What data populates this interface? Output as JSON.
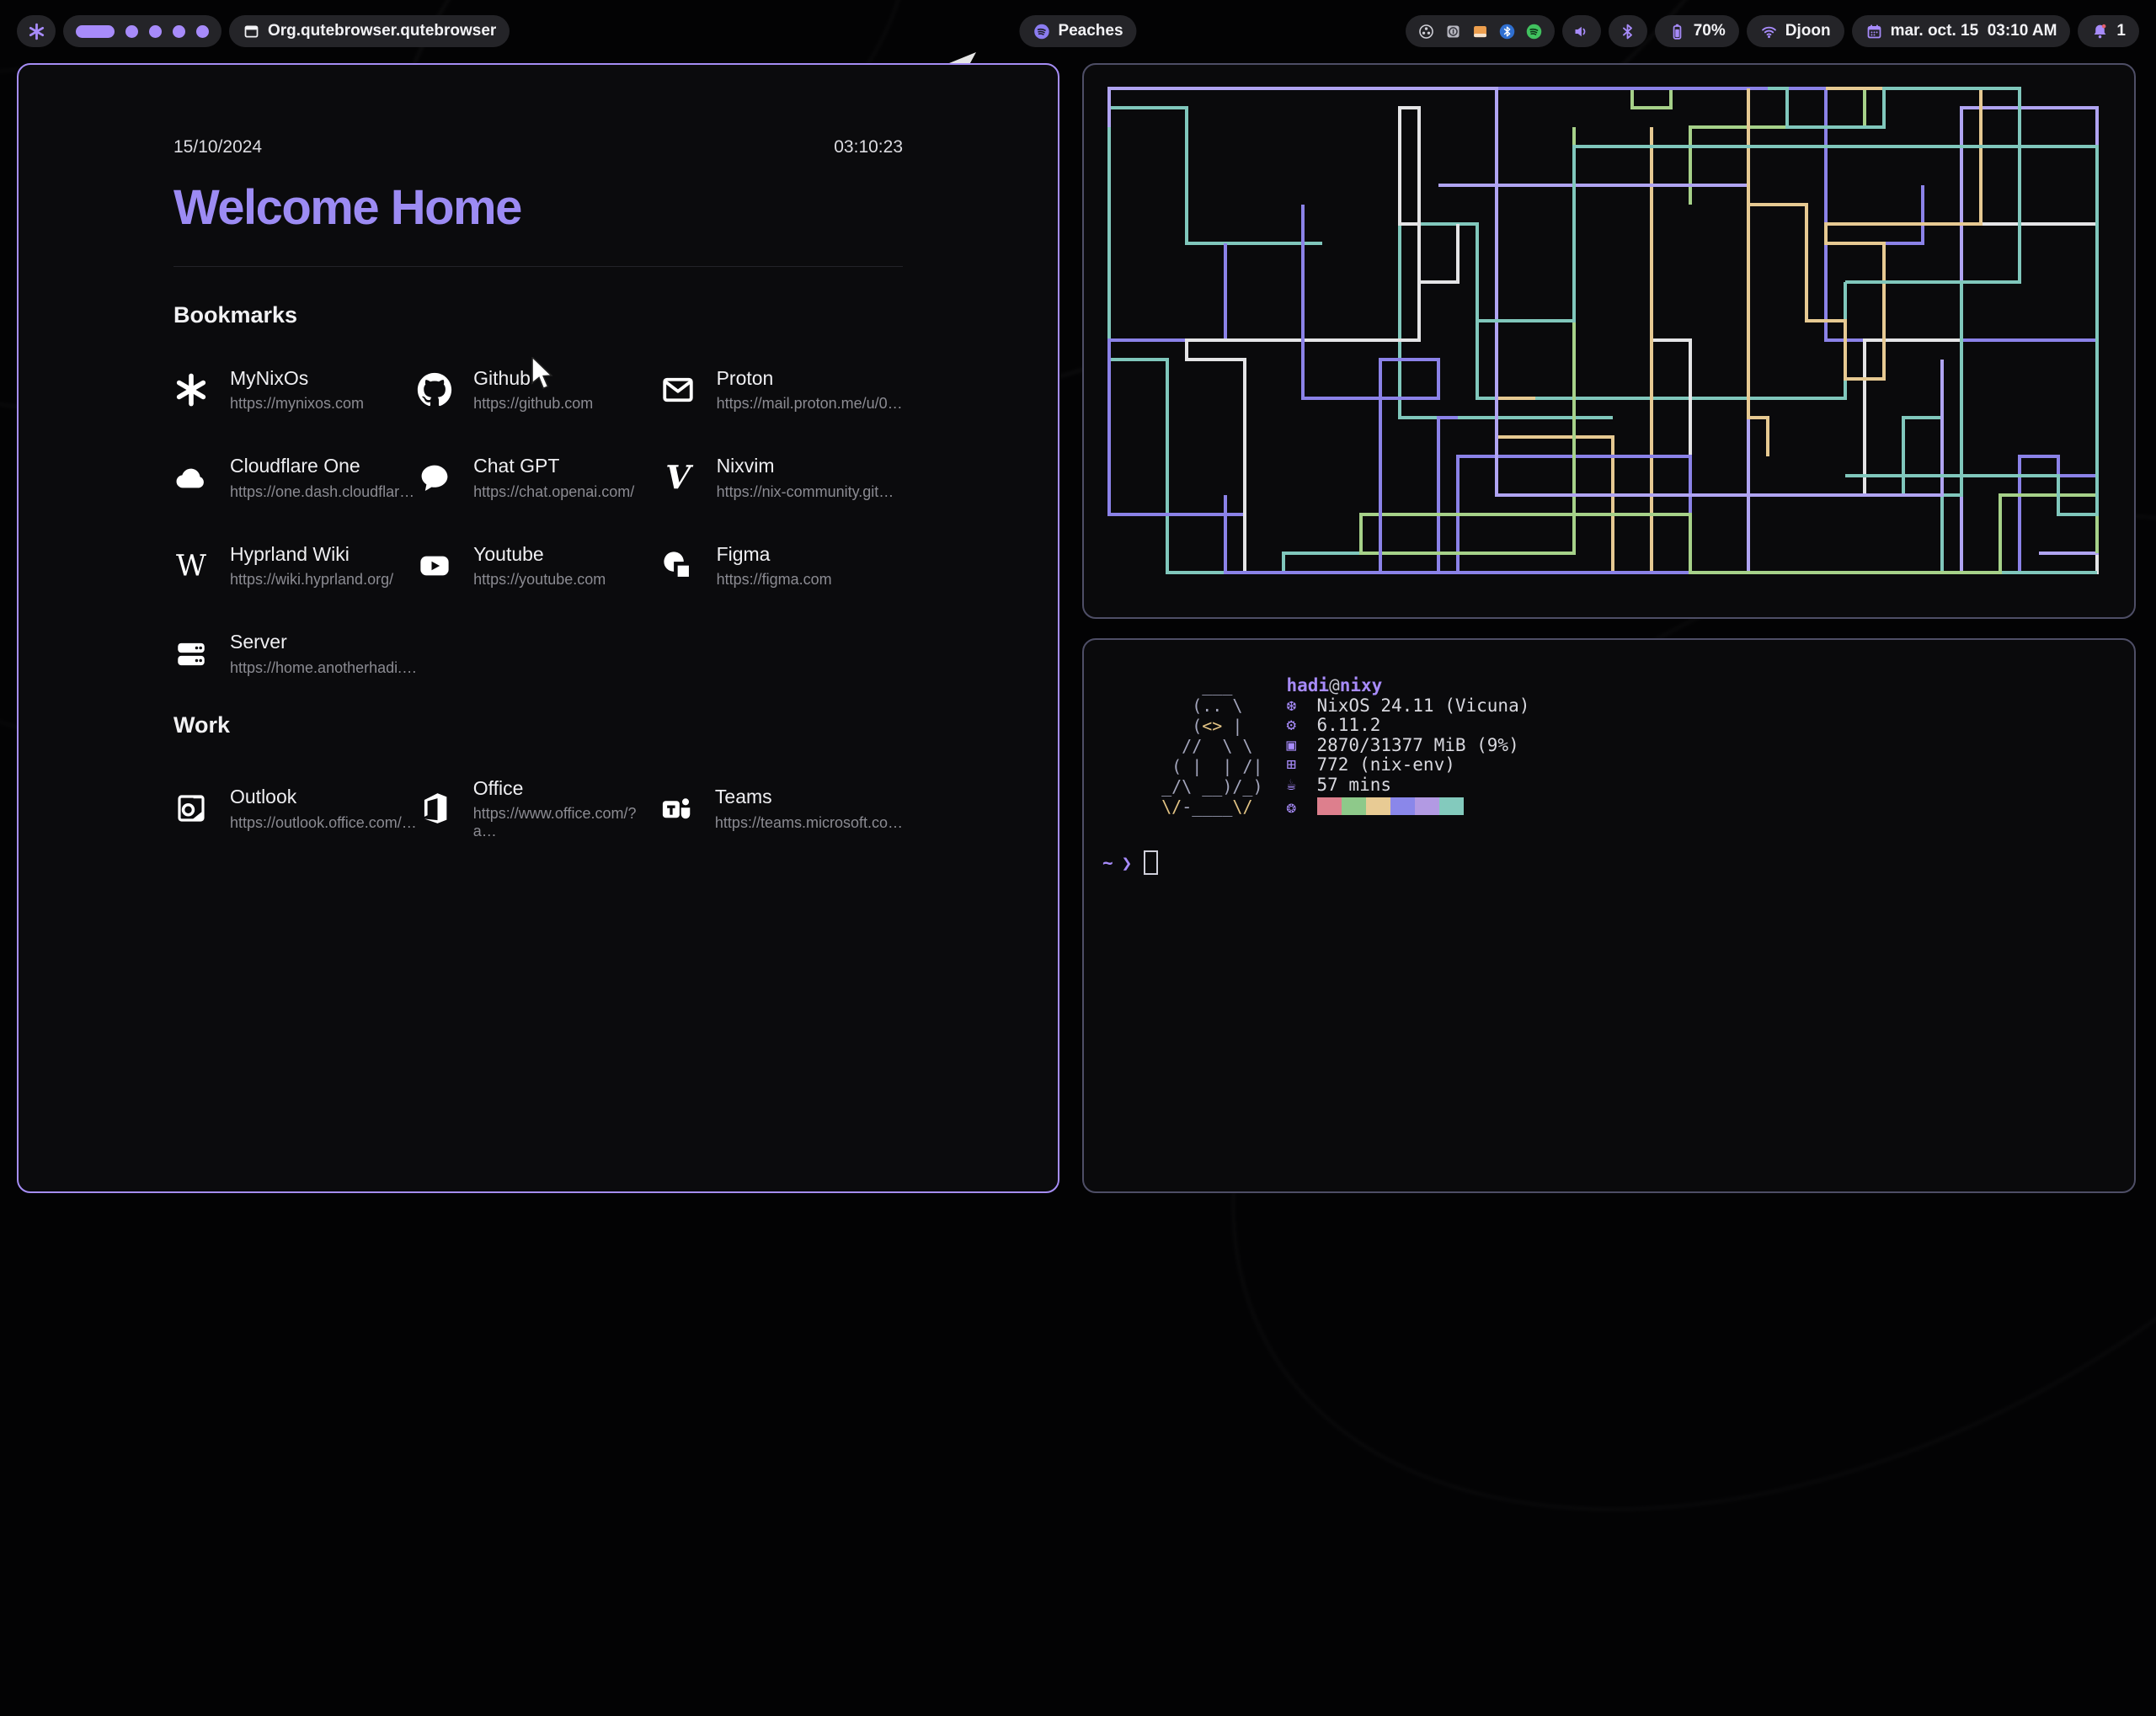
{
  "topbar": {
    "window_title": "Org.qutebrowser.qutebrowser",
    "workspaces": {
      "count": 5,
      "active_index": 0
    },
    "media": {
      "label": "Peaches"
    },
    "tray_icons": [
      "obs",
      "keepassxc",
      "files",
      "bluetooth",
      "spotify"
    ],
    "battery": "70%",
    "network": "Djoon",
    "clock": "mar. oct. 15  03:10 AM",
    "notifications": "1"
  },
  "startpage": {
    "date": "15/10/2024",
    "time": "03:10:23",
    "title": "Welcome Home",
    "sections": [
      {
        "title": "Bookmarks",
        "items": [
          {
            "name": "MyNixOs",
            "url": "https://mynixos.com",
            "icon": "nix"
          },
          {
            "name": "Github",
            "url": "https://github.com",
            "icon": "github"
          },
          {
            "name": "Proton",
            "url": "https://mail.proton.me/u/0…",
            "icon": "mail"
          },
          {
            "name": "Cloudflare One",
            "url": "https://one.dash.cloudflar…",
            "icon": "cloud"
          },
          {
            "name": "Chat GPT",
            "url": "https://chat.openai.com/",
            "icon": "chat"
          },
          {
            "name": "Nixvim",
            "url": "https://nix-community.git…",
            "icon": "nixvim"
          },
          {
            "name": "Hyprland Wiki",
            "url": "https://wiki.hyprland.org/",
            "icon": "wikipedia"
          },
          {
            "name": "Youtube",
            "url": "https://youtube.com",
            "icon": "youtube"
          },
          {
            "name": "Figma",
            "url": "https://figma.com",
            "icon": "figma"
          },
          {
            "name": "Server",
            "url": "https://home.anotherhadi.…",
            "icon": "server"
          }
        ]
      },
      {
        "title": "Work",
        "items": [
          {
            "name": "Outlook",
            "url": "https://outlook.office.com/…",
            "icon": "outlook"
          },
          {
            "name": "Office",
            "url": "https://www.office.com/?a…",
            "icon": "office"
          },
          {
            "name": "Teams",
            "url": "https://teams.microsoft.co…",
            "icon": "teams"
          }
        ]
      }
    ]
  },
  "terminal": {
    "user": "hadi",
    "at": "@",
    "host": "nixy",
    "ascii_art": [
      "      ___",
      "     (.. \\",
      "     (<> |",
      "    //  \\ \\",
      "   ( |  | /|",
      "  _/\\ __)/_)",
      "  \\/-____\\/"
    ],
    "info": [
      {
        "icon": "os-icon",
        "glyph": "❆",
        "text": "NixOS 24.11 (Vicuna)"
      },
      {
        "icon": "kernel-icon",
        "glyph": "⚙",
        "text": "6.11.2"
      },
      {
        "icon": "memory-icon",
        "glyph": "▣",
        "text": "2870/31377 MiB (9%)"
      },
      {
        "icon": "packages-icon",
        "glyph": "⊞",
        "text": "772 (nix-env)"
      },
      {
        "icon": "uptime-icon",
        "glyph": "☕",
        "text": "57 mins"
      }
    ],
    "palette_icon_glyph": "❂",
    "palette": [
      "#dd7f8d",
      "#8ec98a",
      "#e8cb94",
      "#8a87ea",
      "#b29ae3",
      "#83cabd"
    ],
    "prompt": {
      "dir": "~",
      "arrow": "❯"
    }
  },
  "pipes": {
    "colors": [
      "#80c7bc",
      "#8b82e8",
      "#a6d189",
      "#e4e4e6",
      "#e6c992",
      "#b0a4f2",
      "#80c7bc",
      "#8b82e8"
    ],
    "seed": 20
  },
  "colors": {
    "accent": "#a78bfa",
    "active_border": "#a58df5",
    "inactive_border": "#4e4e66",
    "art_yellow": "#e2c384",
    "bell_badge": "#e35f6b"
  }
}
